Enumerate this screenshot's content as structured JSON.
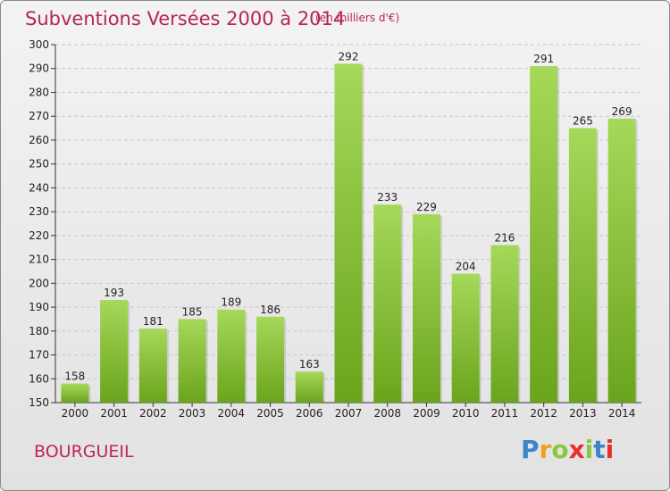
{
  "header": {
    "title": "Subventions Versées 2000 à 2014",
    "subtitle": "(en milliers d'€)"
  },
  "footer": {
    "commune": "BOURGUEIL",
    "logo": [
      "P",
      "r",
      "o",
      "x",
      "i",
      "t",
      "i"
    ],
    "logo_colors": [
      "#3a86c8",
      "#f0a020",
      "#8cc63f",
      "#e8302a",
      "#8cc63f",
      "#3a86c8",
      "#e8302a"
    ]
  },
  "colors": {
    "bar_light": "#a6d85a",
    "bar_dark": "#6aa41c",
    "grid": "#c8c8c8",
    "axis": "#333333",
    "text": "#222222"
  },
  "chart_data": {
    "type": "bar",
    "categories": [
      "2000",
      "2001",
      "2002",
      "2003",
      "2004",
      "2005",
      "2006",
      "2007",
      "2008",
      "2009",
      "2010",
      "2011",
      "2012",
      "2013",
      "2014"
    ],
    "values": [
      158,
      193,
      181,
      185,
      189,
      186,
      163,
      292,
      233,
      229,
      204,
      216,
      291,
      265,
      269
    ],
    "title": "Subventions Versées 2000 à 2014",
    "ylim": [
      150,
      300
    ],
    "yticks": [
      150,
      160,
      170,
      180,
      190,
      200,
      210,
      220,
      230,
      240,
      250,
      260,
      270,
      280,
      290,
      300
    ],
    "grid": true,
    "data_labels": true
  }
}
